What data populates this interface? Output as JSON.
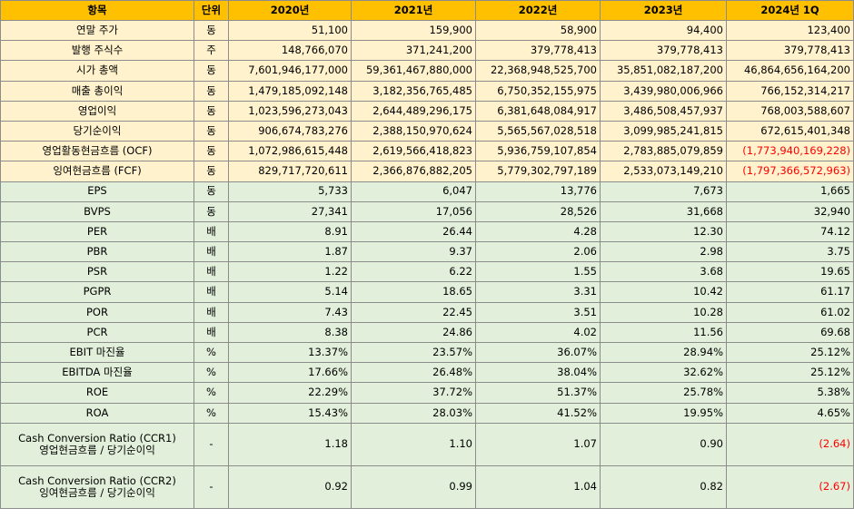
{
  "columns": {
    "item": "항목",
    "unit": "단위",
    "years": [
      "2020년",
      "2021년",
      "2022년",
      "2023년",
      "2024년 1Q"
    ]
  },
  "rows": [
    {
      "label": [
        "연말 주가"
      ],
      "unit": "동",
      "values": [
        "51,100",
        "159,900",
        "58,900",
        "94,400",
        "123,400"
      ],
      "group": "yellow"
    },
    {
      "label": [
        "발행 주식수"
      ],
      "unit": "주",
      "values": [
        "148,766,070",
        "371,241,200",
        "379,778,413",
        "379,778,413",
        "379,778,413"
      ],
      "group": "yellow"
    },
    {
      "label": [
        "시가 총액"
      ],
      "unit": "동",
      "values": [
        "7,601,946,177,000",
        "59,361,467,880,000",
        "22,368,948,525,700",
        "35,851,082,187,200",
        "46,864,656,164,200"
      ],
      "group": "yellow"
    },
    {
      "label": [
        "매출 총이익"
      ],
      "unit": "동",
      "values": [
        "1,479,185,092,148",
        "3,182,356,765,485",
        "6,750,352,155,975",
        "3,439,980,006,966",
        "766,152,314,217"
      ],
      "group": "yellow"
    },
    {
      "label": [
        "영업이익"
      ],
      "unit": "동",
      "values": [
        "1,023,596,273,043",
        "2,644,489,296,175",
        "6,381,648,084,917",
        "3,486,508,457,937",
        "768,003,588,607"
      ],
      "group": "yellow"
    },
    {
      "label": [
        "당기순이익"
      ],
      "unit": "동",
      "values": [
        "906,674,783,276",
        "2,388,150,970,624",
        "5,565,567,028,518",
        "3,099,985,241,815",
        "672,615,401,348"
      ],
      "group": "yellow"
    },
    {
      "label": [
        "영업활동현금흐름 (OCF)"
      ],
      "unit": "동",
      "values": [
        "1,072,986,615,448",
        "2,619,566,418,823",
        "5,936,759,107,854",
        "2,783,885,079,859",
        "(1,773,940,169,228)"
      ],
      "group": "yellow"
    },
    {
      "label": [
        "잉여현금흐름 (FCF)"
      ],
      "unit": "동",
      "values": [
        "829,717,720,611",
        "2,366,876,882,205",
        "5,779,302,797,189",
        "2,533,073,149,210",
        "(1,797,366,572,963)"
      ],
      "group": "yellow"
    },
    {
      "label": [
        "EPS"
      ],
      "unit": "동",
      "values": [
        "5,733",
        "6,047",
        "13,776",
        "7,673",
        "1,665"
      ],
      "group": "green"
    },
    {
      "label": [
        "BVPS"
      ],
      "unit": "동",
      "values": [
        "27,341",
        "17,056",
        "28,526",
        "31,668",
        "32,940"
      ],
      "group": "green"
    },
    {
      "label": [
        "PER"
      ],
      "unit": "배",
      "values": [
        "8.91",
        "26.44",
        "4.28",
        "12.30",
        "74.12"
      ],
      "group": "green"
    },
    {
      "label": [
        "PBR"
      ],
      "unit": "배",
      "values": [
        "1.87",
        "9.37",
        "2.06",
        "2.98",
        "3.75"
      ],
      "group": "green"
    },
    {
      "label": [
        "PSR"
      ],
      "unit": "배",
      "values": [
        "1.22",
        "6.22",
        "1.55",
        "3.68",
        "19.65"
      ],
      "group": "green"
    },
    {
      "label": [
        "PGPR"
      ],
      "unit": "배",
      "values": [
        "5.14",
        "18.65",
        "3.31",
        "10.42",
        "61.17"
      ],
      "group": "green"
    },
    {
      "label": [
        "POR"
      ],
      "unit": "배",
      "values": [
        "7.43",
        "22.45",
        "3.51",
        "10.28",
        "61.02"
      ],
      "group": "green"
    },
    {
      "label": [
        "PCR"
      ],
      "unit": "배",
      "values": [
        "8.38",
        "24.86",
        "4.02",
        "11.56",
        "69.68"
      ],
      "group": "green"
    },
    {
      "label": [
        "EBIT 마진율"
      ],
      "unit": "%",
      "values": [
        "13.37%",
        "23.57%",
        "36.07%",
        "28.94%",
        "25.12%"
      ],
      "group": "green"
    },
    {
      "label": [
        "EBITDA 마진율"
      ],
      "unit": "%",
      "values": [
        "17.66%",
        "26.48%",
        "38.04%",
        "32.62%",
        "25.12%"
      ],
      "group": "green"
    },
    {
      "label": [
        "ROE"
      ],
      "unit": "%",
      "values": [
        "22.29%",
        "37.72%",
        "51.37%",
        "25.78%",
        "5.38%"
      ],
      "group": "green"
    },
    {
      "label": [
        "ROA"
      ],
      "unit": "%",
      "values": [
        "15.43%",
        "28.03%",
        "41.52%",
        "19.95%",
        "4.65%"
      ],
      "group": "green"
    },
    {
      "label": [
        "Cash Conversion Ratio (CCR1)",
        "영업현금흐름 / 당기순이익"
      ],
      "unit": "-",
      "values": [
        "1.18",
        "1.10",
        "1.07",
        "0.90",
        "(2.64)"
      ],
      "group": "green"
    },
    {
      "label": [
        "Cash Conversion Ratio (CCR2)",
        "잉여현금흐름 / 당기순이익"
      ],
      "unit": "-",
      "values": [
        "0.92",
        "0.99",
        "1.04",
        "0.82",
        "(2.67)"
      ],
      "group": "green"
    }
  ],
  "colors": {
    "header": "#ffc000",
    "yellow_rows": "#fff2cc",
    "green_rows": "#e2efda",
    "negative_text": "#ff0000",
    "border": "#8c8c8c"
  }
}
